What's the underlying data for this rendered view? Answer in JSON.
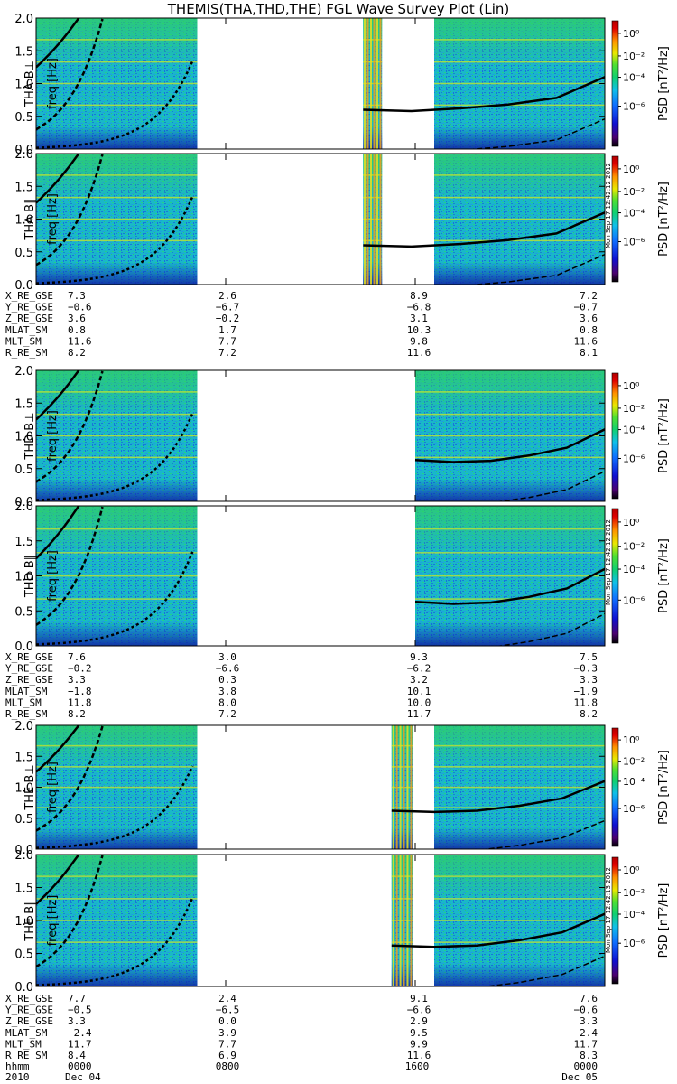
{
  "chart_data": {
    "type": "heatmap",
    "title": "THEMIS(THA,THD,THE) FGL Wave Survey Plot (Lin)",
    "x_ticks": [
      "0000",
      "0800",
      "1600",
      "0000"
    ],
    "date_left": "2010",
    "date_start": "Dec 04",
    "date_end": "Dec 05",
    "time_label": "hhmm",
    "colorbar_label": "PSD [nT²/Hz]",
    "colorbar_ticks": [
      "10⁰",
      "10⁻²",
      "10⁻⁴",
      "10⁻⁶"
    ],
    "colorbar_tick_values": [
      1,
      0.01,
      0.0001,
      1e-06
    ],
    "ylim": [
      0,
      2.0
    ],
    "y_ticks": [
      "0.0",
      "0.5",
      "1.0",
      "1.5",
      "2.0"
    ],
    "ylabel": "freq [Hz]",
    "panels": [
      {
        "probe": "THA",
        "label": "THA B⊥",
        "data_segments": [
          [
            0,
            6.8
          ],
          [
            13.8,
            14.6
          ],
          [
            16.8,
            24
          ]
        ],
        "line_start_hour": 13.8,
        "line_values": [
          0.6,
          0.58,
          0.62,
          0.68,
          0.78,
          1.1
        ]
      },
      {
        "probe": "THA",
        "label": "THA B∥",
        "data_segments": [
          [
            0,
            6.8
          ],
          [
            13.8,
            14.6
          ],
          [
            16.8,
            24
          ]
        ],
        "line_start_hour": 13.8,
        "line_values": [
          0.6,
          0.58,
          0.62,
          0.68,
          0.78,
          1.1
        ]
      },
      {
        "probe": "THD",
        "label": "THD B⊥",
        "data_segments": [
          [
            0,
            6.8
          ],
          [
            16.0,
            24
          ]
        ],
        "line_start_hour": 16.0,
        "line_values": [
          0.63,
          0.6,
          0.62,
          0.7,
          0.82,
          1.1
        ]
      },
      {
        "probe": "THD",
        "label": "THD B∥",
        "data_segments": [
          [
            0,
            6.8
          ],
          [
            16.0,
            24
          ]
        ],
        "line_start_hour": 16.0,
        "line_values": [
          0.63,
          0.6,
          0.62,
          0.7,
          0.82,
          1.1
        ]
      },
      {
        "probe": "THE",
        "label": "THE B⊥",
        "data_segments": [
          [
            0,
            6.8
          ],
          [
            15.0,
            15.9
          ],
          [
            16.8,
            24
          ]
        ],
        "line_start_hour": 15.0,
        "line_values": [
          0.62,
          0.6,
          0.62,
          0.7,
          0.82,
          1.1
        ]
      },
      {
        "probe": "THE",
        "label": "THE B∥",
        "data_segments": [
          [
            0,
            6.8
          ],
          [
            15.0,
            15.9
          ],
          [
            16.8,
            24
          ]
        ],
        "line_start_hour": 15.0,
        "line_values": [
          0.62,
          0.6,
          0.62,
          0.7,
          0.82,
          1.1
        ]
      }
    ],
    "ephemeris": [
      {
        "probe": "THA",
        "rows": [
          {
            "label": "X_RE_GSE",
            "values": [
              "7.3",
              "2.6",
              "8.9",
              "7.2"
            ]
          },
          {
            "label": "Y_RE_GSE",
            "values": [
              "−0.6",
              "−6.7",
              "−6.8",
              "−0.7"
            ]
          },
          {
            "label": "Z_RE_GSE",
            "values": [
              "3.6",
              "−0.2",
              "3.1",
              "3.6"
            ]
          },
          {
            "label": "MLAT_SM",
            "values": [
              "0.8",
              "1.7",
              "10.3",
              "0.8"
            ]
          },
          {
            "label": "MLT_SM",
            "values": [
              "11.6",
              "7.7",
              "9.8",
              "11.6"
            ]
          },
          {
            "label": "R_RE_SM",
            "values": [
              "8.2",
              "7.2",
              "11.6",
              "8.1"
            ]
          }
        ]
      },
      {
        "probe": "THD",
        "rows": [
          {
            "label": "X_RE_GSE",
            "values": [
              "7.6",
              "3.0",
              "9.3",
              "7.5"
            ]
          },
          {
            "label": "Y_RE_GSE",
            "values": [
              "−0.2",
              "−6.6",
              "−6.2",
              "−0.3"
            ]
          },
          {
            "label": "Z_RE_GSE",
            "values": [
              "3.3",
              "0.3",
              "3.2",
              "3.3"
            ]
          },
          {
            "label": "MLAT_SM",
            "values": [
              "−1.8",
              "3.8",
              "10.1",
              "−1.9"
            ]
          },
          {
            "label": "MLT_SM",
            "values": [
              "11.8",
              "8.0",
              "10.0",
              "11.8"
            ]
          },
          {
            "label": "R_RE_SM",
            "values": [
              "8.2",
              "7.2",
              "11.7",
              "8.2"
            ]
          }
        ]
      },
      {
        "probe": "THE",
        "rows": [
          {
            "label": "X_RE_GSE",
            "values": [
              "7.7",
              "2.4",
              "9.1",
              "7.6"
            ]
          },
          {
            "label": "Y_RE_GSE",
            "values": [
              "−0.5",
              "−6.5",
              "−6.6",
              "−0.6"
            ]
          },
          {
            "label": "Z_RE_GSE",
            "values": [
              "3.3",
              "0.0",
              "2.9",
              "3.3"
            ]
          },
          {
            "label": "MLAT_SM",
            "values": [
              "−2.4",
              "3.9",
              "9.5",
              "−2.4"
            ]
          },
          {
            "label": "MLT_SM",
            "values": [
              "11.7",
              "7.7",
              "9.9",
              "11.7"
            ]
          },
          {
            "label": "R_RE_SM",
            "values": [
              "8.4",
              "6.9",
              "11.6",
              "8.3"
            ]
          }
        ]
      }
    ],
    "side_stamps": [
      "Mon Sep 17 12:42:12 2012",
      "Mon Sep 17 12:42:12 2012",
      "Mon Sep 17 12:42:13 2012"
    ],
    "colors": {
      "background": "#ffffff",
      "axis": "#000000",
      "line": "#000000"
    }
  }
}
